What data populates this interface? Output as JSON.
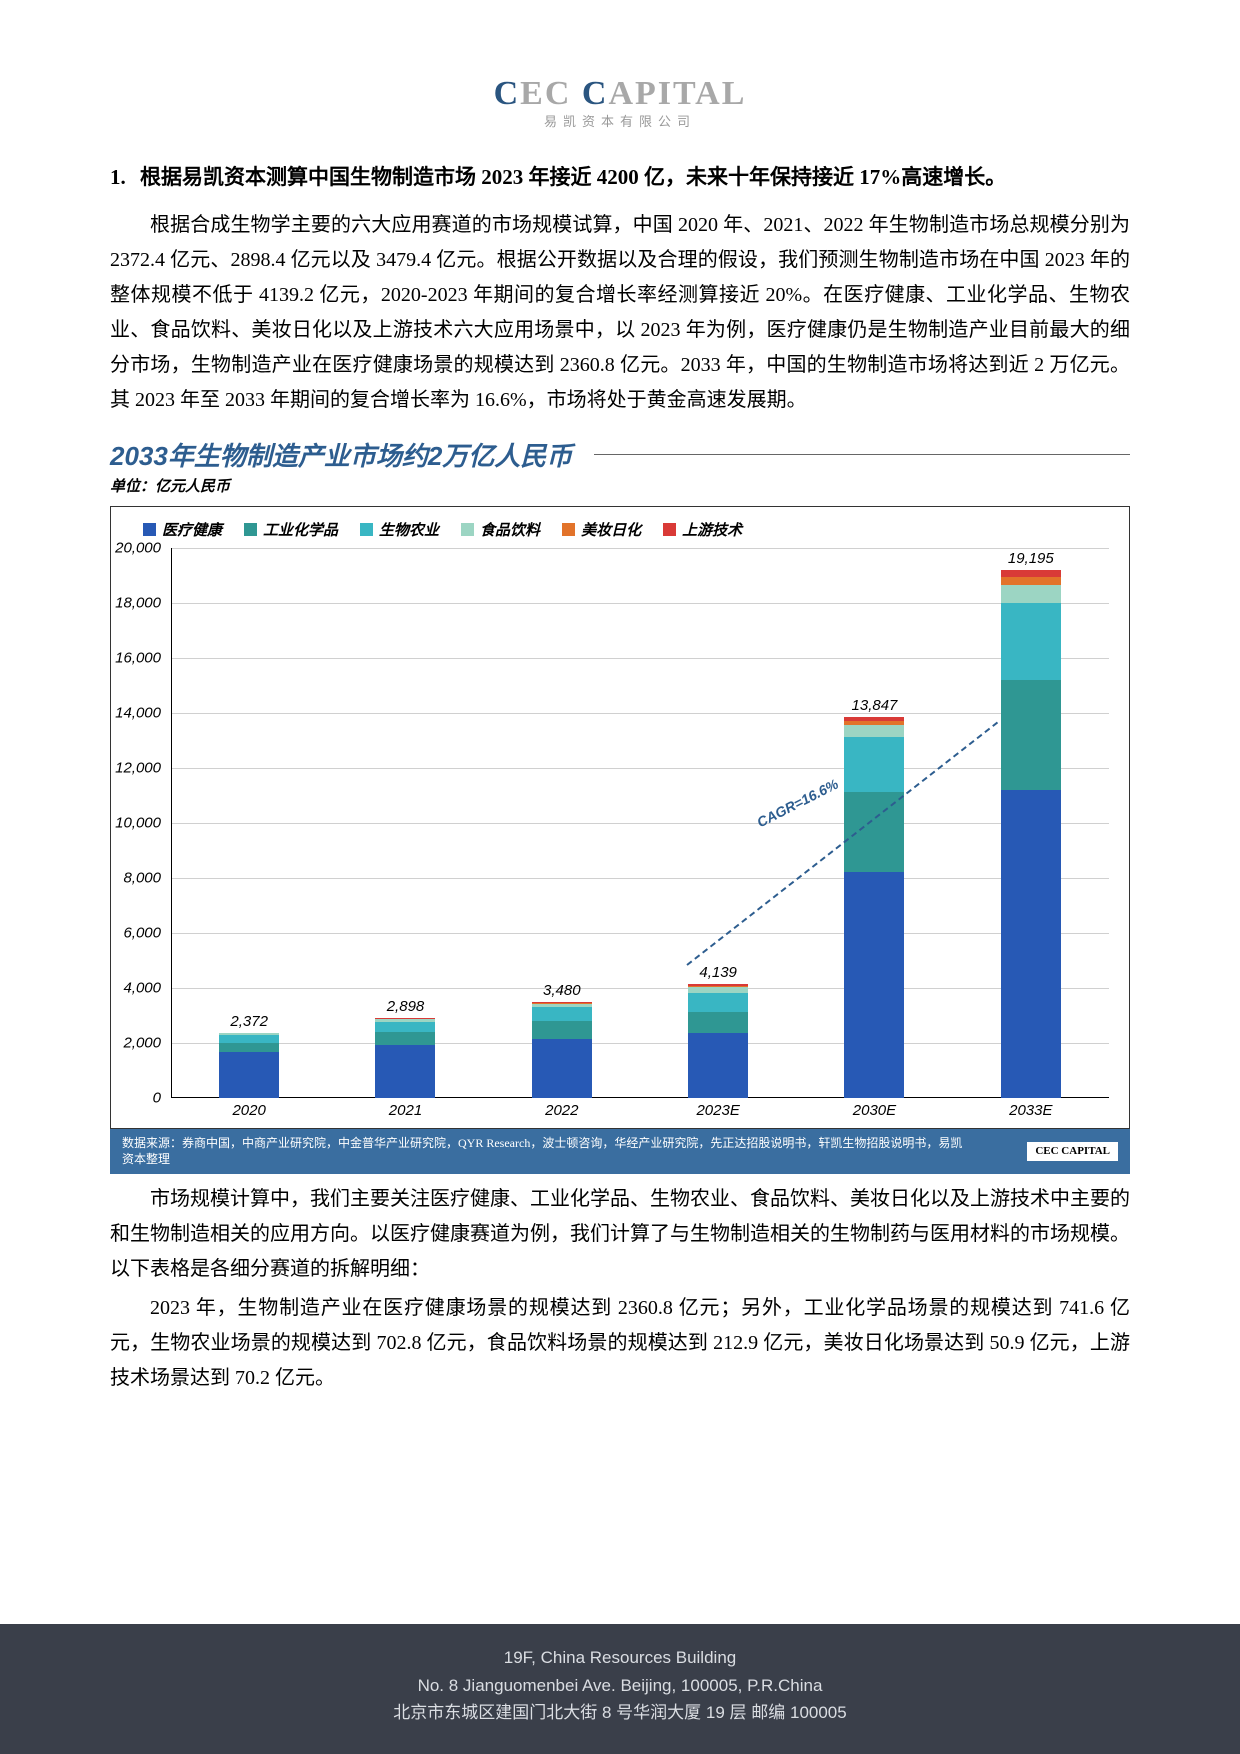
{
  "logo": {
    "main": "CEC CAPITAL",
    "sub": "易凯资本有限公司"
  },
  "section": {
    "number": "1.",
    "title": "根据易凯资本测算中国生物制造市场 2023 年接近 4200 亿，未来十年保持接近 17%高速增长。"
  },
  "paragraph1": "根据合成生物学主要的六大应用赛道的市场规模试算，中国 2020 年、2021、2022 年生物制造市场总规模分别为 2372.4 亿元、2898.4 亿元以及 3479.4 亿元。根据公开数据以及合理的假设，我们预测生物制造市场在中国 2023 年的整体规模不低于 4139.2 亿元，2020-2023 年期间的复合增长率经测算接近 20%。在医疗健康、工业化学品、生物农业、食品饮料、美妆日化以及上游技术六大应用场景中，以 2023 年为例，医疗健康仍是生物制造产业目前最大的细分市场，生物制造产业在医疗健康场景的规模达到 2360.8 亿元。2033 年，中国的生物制造市场将达到近 2 万亿元。其 2023 年至 2033 年期间的复合增长率为 16.6%，市场将处于黄金高速发展期。",
  "chart": {
    "title": "2033年生物制造产业市场约2万亿人民币",
    "unit": "单位：亿元人民币",
    "type": "stacked-bar",
    "ylim": [
      0,
      20000
    ],
    "ytick_step": 2000,
    "yticks": [
      "0",
      "2,000",
      "4,000",
      "6,000",
      "8,000",
      "10,000",
      "12,000",
      "14,000",
      "16,000",
      "18,000",
      "20,000"
    ],
    "categories": [
      "2020",
      "2021",
      "2022",
      "2023E",
      "2030E",
      "2033E"
    ],
    "totals": [
      "2,372",
      "2,898",
      "3,480",
      "4,139",
      "13,847",
      "19,195"
    ],
    "series": [
      {
        "name": "医疗健康",
        "color": "#2759b5",
        "values": [
          1650,
          1900,
          2150,
          2361,
          8200,
          11200
        ]
      },
      {
        "name": "工业化学品",
        "color": "#2f9793",
        "values": [
          350,
          480,
          650,
          742,
          2900,
          4000
        ]
      },
      {
        "name": "生物农业",
        "color": "#39b6c3",
        "values": [
          280,
          380,
          500,
          703,
          2000,
          2800
        ]
      },
      {
        "name": "食品饮料",
        "color": "#9cd5c3",
        "values": [
          60,
          90,
          120,
          213,
          450,
          640
        ]
      },
      {
        "name": "美妆日化",
        "color": "#e2732a",
        "values": [
          17,
          28,
          35,
          51,
          147,
          305
        ]
      },
      {
        "name": "上游技术",
        "color": "#d93a37",
        "values": [
          15,
          20,
          25,
          70,
          150,
          250
        ]
      }
    ],
    "cagr_label": "CAGR=16.6%",
    "grid_color": "#d0d0d0",
    "background_color": "#ffffff"
  },
  "source": {
    "text": "数据来源：券商中国，中商产业研究院，中金普华产业研究院，QYR Research，波士顿咨询，华经产业研究院，先正达招股说明书，轩凯生物招股说明书，易凯资本整理",
    "logo": "CEC CAPITAL"
  },
  "paragraph2": "市场规模计算中，我们主要关注医疗健康、工业化学品、生物农业、食品饮料、美妆日化以及上游技术中主要的和生物制造相关的应用方向。以医疗健康赛道为例，我们计算了与生物制造相关的生物制药与医用材料的市场规模。以下表格是各细分赛道的拆解明细：",
  "paragraph3": "2023 年，生物制造产业在医疗健康场景的规模达到 2360.8 亿元；另外，工业化学品场景的规模达到 741.6 亿元，生物农业场景的规模达到 702.8 亿元，食品饮料场景的规模达到 212.9 亿元，美妆日化场景达到 50.9 亿元，上游技术场景达到 70.2 亿元。",
  "footer": {
    "line1": "19F, China Resources Building",
    "line2": "No. 8 Jianguomenbei Ave. Beijing, 100005, P.R.China",
    "line3": "北京市东城区建国门北大街 8 号华润大厦 19 层  邮编  100005"
  }
}
